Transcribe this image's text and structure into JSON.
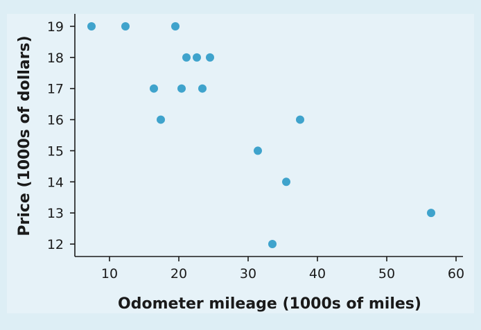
{
  "colors": {
    "background": "#ddeef5",
    "panel": "#e6f2f8",
    "point": "#3fa3cc",
    "axis": "#1a1a1a"
  },
  "chart_data": {
    "type": "scatter",
    "xlabel": "Odometer mileage (1000s of miles)",
    "ylabel": "Price (1000s of dollars)",
    "xlim": [
      5,
      61
    ],
    "ylim": [
      11.6,
      19.4
    ],
    "xticks": [
      10,
      20,
      30,
      40,
      50,
      60
    ],
    "yticks": [
      12,
      13,
      14,
      15,
      16,
      17,
      18,
      19
    ],
    "grid": false,
    "points": [
      {
        "x": 7.4,
        "y": 19
      },
      {
        "x": 12.3,
        "y": 19
      },
      {
        "x": 19.5,
        "y": 19
      },
      {
        "x": 21.1,
        "y": 18
      },
      {
        "x": 22.6,
        "y": 18
      },
      {
        "x": 24.5,
        "y": 18
      },
      {
        "x": 16.4,
        "y": 17
      },
      {
        "x": 20.4,
        "y": 17
      },
      {
        "x": 23.4,
        "y": 17
      },
      {
        "x": 17.4,
        "y": 16
      },
      {
        "x": 37.5,
        "y": 16
      },
      {
        "x": 31.4,
        "y": 15
      },
      {
        "x": 35.5,
        "y": 14
      },
      {
        "x": 56.4,
        "y": 13
      },
      {
        "x": 33.5,
        "y": 12
      }
    ]
  }
}
